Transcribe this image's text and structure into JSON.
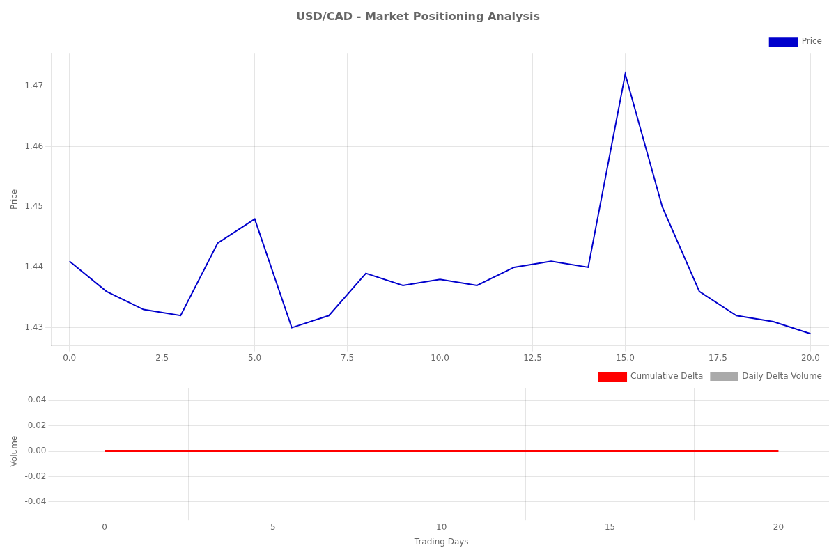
{
  "chart_data": [
    {
      "type": "line",
      "title": "USD/CAD - Market Positioning Analysis",
      "x": [
        0,
        1,
        2,
        3,
        4,
        5,
        6,
        7,
        8,
        9,
        10,
        11,
        12,
        13,
        14,
        15,
        16,
        17,
        18,
        19,
        20
      ],
      "series": [
        {
          "name": "Price",
          "color": "#0000cc",
          "values": [
            1.441,
            1.436,
            1.433,
            1.432,
            1.444,
            1.448,
            1.43,
            1.432,
            1.439,
            1.437,
            1.438,
            1.437,
            1.44,
            1.441,
            1.44,
            1.472,
            1.45,
            1.436,
            1.432,
            1.431,
            1.429
          ]
        }
      ],
      "ylabel": "Price",
      "xlim": [
        -0.5,
        20.5
      ],
      "xticks": [
        {
          "value": 0,
          "label": "0.0"
        },
        2.5,
        {
          "value": 5,
          "label": "5.0"
        },
        7.5,
        {
          "value": 10,
          "label": "10.0"
        },
        12.5,
        {
          "value": 15,
          "label": "15.0"
        },
        17.5,
        {
          "value": 20,
          "label": "20.0"
        }
      ],
      "ylim": [
        1.427,
        1.4755
      ],
      "yticks": [
        1.43,
        1.44,
        1.45,
        1.46,
        1.47
      ],
      "grid": true,
      "legend": "upper right"
    },
    {
      "type": "bar",
      "x": [
        0,
        1,
        2,
        3,
        4,
        5,
        6,
        7,
        8,
        9,
        10,
        11,
        12,
        13,
        14,
        15,
        16,
        17,
        18,
        19,
        20
      ],
      "series": [
        {
          "name": "Cumulative Delta",
          "type": "line",
          "color": "#ff0000",
          "values": [
            0,
            0,
            0,
            0,
            0,
            0,
            0,
            0,
            0,
            0,
            0,
            0,
            0,
            0,
            0,
            0,
            0,
            0,
            0,
            0,
            0
          ]
        },
        {
          "name": "Daily Delta Volume",
          "type": "bar",
          "color": "#aaaaaa",
          "values": [
            0,
            0,
            0,
            0,
            0,
            0,
            0,
            0,
            0,
            0,
            0,
            0,
            0,
            0,
            0,
            0,
            0,
            0,
            0,
            0,
            0
          ]
        }
      ],
      "xlabel": "Trading Days",
      "ylabel": "Volume",
      "xlim": [
        -1.5,
        21.5
      ],
      "xticks": [
        0,
        5,
        10,
        15,
        20
      ],
      "ylim": [
        -0.05,
        0.05
      ],
      "yticks": [
        -0.04,
        -0.02,
        {
          "value": 0,
          "label": "0.00"
        },
        0.02,
        0.04
      ],
      "grid": true,
      "legend": "upper right"
    }
  ]
}
